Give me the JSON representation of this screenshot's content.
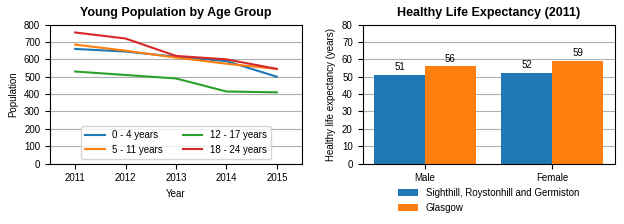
{
  "chart_data": [
    {
      "type": "line",
      "title": "Young Population by Age Group",
      "xlabel": "Year",
      "ylabel": "Population",
      "x": [
        2011,
        2012,
        2013,
        2014,
        2015
      ],
      "series": [
        {
          "name": "0 - 4 years",
          "values": [
            660,
            645,
            615,
            590,
            500
          ]
        },
        {
          "name": "5 - 11 years",
          "values": [
            685,
            650,
            610,
            575,
            545
          ]
        },
        {
          "name": "12 - 17 years",
          "values": [
            530,
            510,
            490,
            415,
            410
          ]
        },
        {
          "name": "18 - 24 years",
          "values": [
            755,
            720,
            620,
            600,
            545
          ]
        }
      ],
      "xlim": [
        2010.5,
        2015.5
      ],
      "xticks": [
        2011,
        2012,
        2013,
        2014,
        2015
      ],
      "ylim": [
        0,
        800
      ],
      "yticks": [
        0,
        100,
        200,
        300,
        400,
        500,
        600,
        700,
        800
      ],
      "grid": "y",
      "legend": "lower center"
    },
    {
      "type": "bar",
      "title": "Healthy Life Expectancy (2011)",
      "ylabel": "Healthy life expectancy (years)",
      "categories": [
        "Male",
        "Female"
      ],
      "series": [
        {
          "name": "Sighthill, Roystonhill and Germiston",
          "values": [
            51,
            52
          ]
        },
        {
          "name": "Glasgow",
          "values": [
            56,
            59
          ]
        }
      ],
      "ylim": [
        0,
        80
      ],
      "yticks": [
        0,
        10,
        20,
        30,
        40,
        50,
        60,
        70,
        80
      ],
      "grid": "y",
      "data_labels": true,
      "legend": "bottom"
    }
  ]
}
